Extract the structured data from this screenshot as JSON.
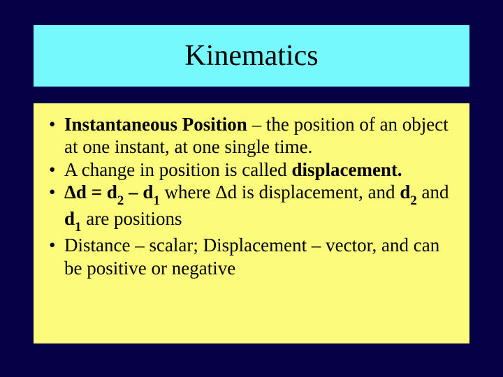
{
  "slide": {
    "title": "Kinematics",
    "title_box": {
      "background_color": "#76f9fd",
      "font_size": 42
    },
    "content_box": {
      "background_color": "#fdfb7b",
      "font_size": 27
    },
    "background_color": "#060047",
    "bullets": {
      "b1_bold": "Instantaneous Position",
      "b1_rest": " – the position of an object at one instant, at one single time.",
      "b2_pre": "A change in position is called ",
      "b2_bold": "displacement.",
      "b3_delta_d": "Δd = d",
      "b3_sub1": "2",
      "b3_mid1": " – d",
      "b3_sub2": "1",
      "b3_where": " where  Δd is displacement, and ",
      "b3_d2": "d",
      "b3_sub3": "2",
      "b3_and": "  and ",
      "b3_d1": "d",
      "b3_sub4": "1",
      "b3_tail": " are positions",
      "b4": "Distance – scalar; Displacement – vector, and can be positive or negative"
    }
  }
}
